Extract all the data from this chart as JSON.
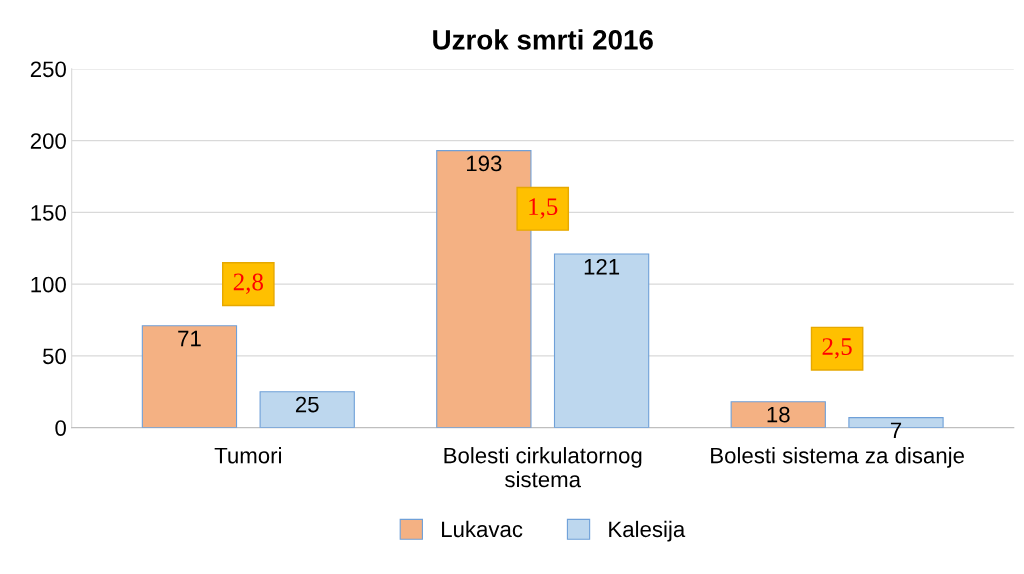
{
  "chart_data": {
    "type": "bar",
    "title": "Uzrok smrti 2016",
    "categories": [
      "Tumori",
      "Bolesti cirkulatornog sistema",
      "Bolesti sistema za disanje"
    ],
    "series": [
      {
        "name": "Lukavac",
        "color": "#f4b183",
        "values": [
          71,
          193,
          18
        ]
      },
      {
        "name": "Kalesija",
        "color": "#bdd7ee",
        "values": [
          25,
          121,
          7
        ]
      }
    ],
    "ylim": [
      0,
      250
    ],
    "yticks": [
      0,
      50,
      100,
      150,
      200,
      250
    ],
    "grid": "y",
    "legend": "bottom",
    "data_labels": true,
    "annotations": [
      "2,8",
      "1,5",
      "2,5"
    ]
  }
}
